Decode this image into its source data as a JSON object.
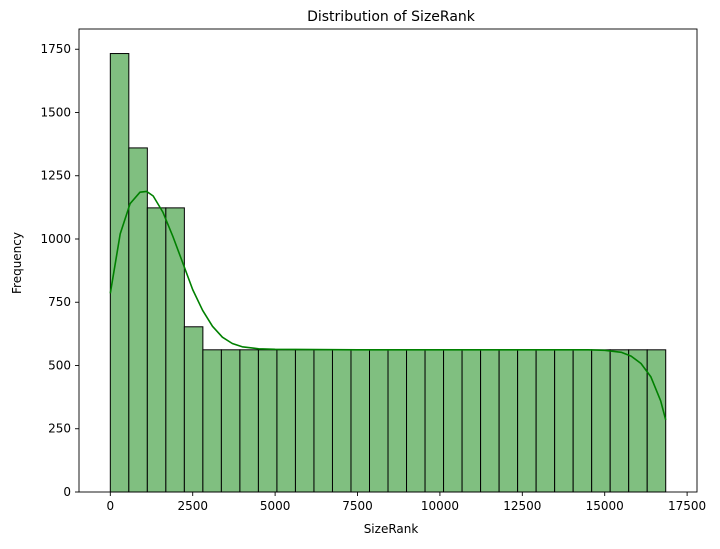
{
  "chart_data": {
    "type": "bar",
    "subtype": "histogram-with-kde",
    "title": "Distribution of SizeRank",
    "xlabel": "SizeRank",
    "ylabel": "Frequency",
    "xlim": [
      -950,
      17800
    ],
    "ylim": [
      0,
      1830
    ],
    "x_ticks": [
      0,
      2500,
      5000,
      7500,
      10000,
      12500,
      15000,
      17500
    ],
    "y_ticks": [
      0,
      250,
      500,
      750,
      1000,
      1250,
      1500,
      1750
    ],
    "bin_start": 0,
    "bin_width": 561.7,
    "values": [
      1733,
      1360,
      1123,
      1123,
      653,
      562,
      562,
      562,
      562,
      562,
      562,
      562,
      562,
      562,
      562,
      562,
      562,
      562,
      562,
      562,
      562,
      562,
      562,
      562,
      562,
      562,
      562,
      562,
      562,
      562
    ],
    "bar_color": "#80bf80",
    "edge_color": "#000000",
    "kde_color": "#008000",
    "kde": {
      "x": [
        0,
        300,
        600,
        900,
        1100,
        1300,
        1600,
        1900,
        2200,
        2500,
        2800,
        3100,
        3400,
        3700,
        4000,
        4500,
        5000,
        7500,
        10000,
        12500,
        14500,
        15000,
        15500,
        15800,
        16100,
        16400,
        16700,
        16850
      ],
      "y": [
        785,
        1020,
        1140,
        1185,
        1188,
        1170,
        1105,
        1010,
        905,
        800,
        718,
        655,
        612,
        587,
        574,
        566,
        564,
        562,
        562,
        562,
        562,
        560,
        552,
        537,
        508,
        455,
        360,
        285
      ]
    },
    "grid": false,
    "legend": "none"
  }
}
